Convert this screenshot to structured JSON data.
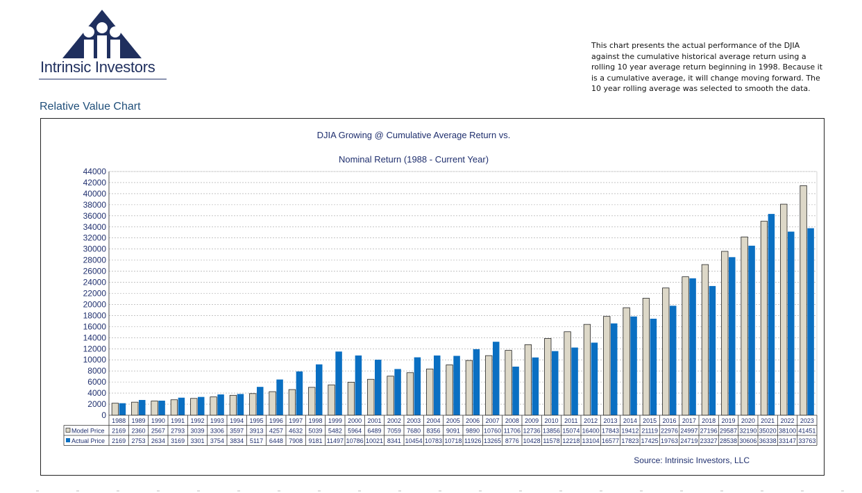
{
  "logo": {
    "text": "Intrinsic Investors"
  },
  "description": "This chart presents the actual performance of the DJIA against the cumulative historical average return using a rolling 10 year average return beginning in 1998. Because it is a cumulative average, it will change moving forward. The 10 year rolling average was selected to smooth the data.",
  "section_title": "Relative Value Chart",
  "source": "Source: Intrinsic Investors, LLC",
  "colors": {
    "model": "#ddd8c8",
    "actual": "#0a6fc2",
    "text": "#1f2f6e"
  },
  "chart_data": {
    "type": "bar",
    "title": "DJIA Growing @  Cumulative Average Return vs.",
    "subtitle": "Nominal Return  (1988 - Current Year)",
    "xlabel": "",
    "ylabel": "",
    "ylim": [
      0,
      44000
    ],
    "ytick_step": 2000,
    "grid": true,
    "legend": "data-table",
    "categories": [
      "1988",
      "1989",
      "1990",
      "1991",
      "1992",
      "1993",
      "1994",
      "1995",
      "1996",
      "1997",
      "1998",
      "1999",
      "2000",
      "2001",
      "2002",
      "2003",
      "2004",
      "2005",
      "2006",
      "2007",
      "2008",
      "2009",
      "2010",
      "2011",
      "2012",
      "2013",
      "2014",
      "2015",
      "2016",
      "2017",
      "2018",
      "2019",
      "2020",
      "2021",
      "2022",
      "2023"
    ],
    "series": [
      {
        "name": "Model Price",
        "values": [
          2169,
          2360,
          2567,
          2793,
          3039,
          3306,
          3597,
          3913,
          4257,
          4632,
          5039,
          5482,
          5964,
          6489,
          7059,
          7680,
          8356,
          9091,
          9890,
          10760,
          11706,
          12736,
          13856,
          15074,
          16400,
          17843,
          19412,
          21119,
          22976,
          24997,
          27196,
          29587,
          32190,
          35020,
          38100,
          41451
        ]
      },
      {
        "name": "Actual Price",
        "values": [
          2169,
          2753,
          2634,
          3169,
          3301,
          3754,
          3834,
          5117,
          6448,
          7908,
          9181,
          11497,
          10786,
          10021,
          8341,
          10454,
          10783,
          10718,
          11926,
          13265,
          8776,
          10428,
          11578,
          12218,
          13104,
          16577,
          17823,
          17425,
          19763,
          24719,
          23327,
          28538,
          30606,
          36338,
          33147,
          33763
        ]
      }
    ]
  }
}
